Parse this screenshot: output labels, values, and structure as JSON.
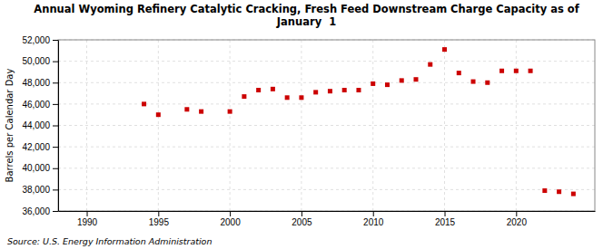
{
  "chart_data": {
    "type": "scatter",
    "title": "Annual Wyoming Refinery Catalytic Cracking, Fresh Feed Downstream Charge Capacity as of\nJanuary  1",
    "ylabel": "Barrels per Calendar Day",
    "source": "Source: U.S. Energy Information Administration",
    "color": "#cc0000",
    "marker": "square",
    "grid": true,
    "xlim": [
      1988,
      2025.5
    ],
    "ylim": [
      36000,
      52000
    ],
    "xticks": [
      1990,
      1995,
      2000,
      2005,
      2010,
      2015,
      2020
    ],
    "yticks": [
      {
        "value": 36000,
        "label": "36,000"
      },
      {
        "value": 38000,
        "label": "38,000"
      },
      {
        "value": 40000,
        "label": "40,000"
      },
      {
        "value": 42000,
        "label": "42,000"
      },
      {
        "value": 44000,
        "label": "44,000"
      },
      {
        "value": 46000,
        "label": "46,000"
      },
      {
        "value": 48000,
        "label": "48,000"
      },
      {
        "value": 50000,
        "label": "50,000"
      },
      {
        "value": 52000,
        "label": "52,000"
      }
    ],
    "x": [
      1994,
      1995,
      1997,
      1998,
      2000,
      2001,
      2002,
      2003,
      2004,
      2005,
      2006,
      2007,
      2008,
      2009,
      2010,
      2011,
      2012,
      2013,
      2014,
      2015,
      2016,
      2017,
      2018,
      2019,
      2020,
      2021,
      2022,
      2023,
      2024
    ],
    "values": [
      46000,
      45000,
      45500,
      45300,
      45300,
      46700,
      47300,
      47400,
      46600,
      46600,
      47100,
      47200,
      47300,
      47300,
      47900,
      47800,
      48200,
      48300,
      49700,
      51100,
      48900,
      48100,
      48000,
      49100,
      49100,
      49100,
      37900,
      37800,
      37600
    ]
  }
}
